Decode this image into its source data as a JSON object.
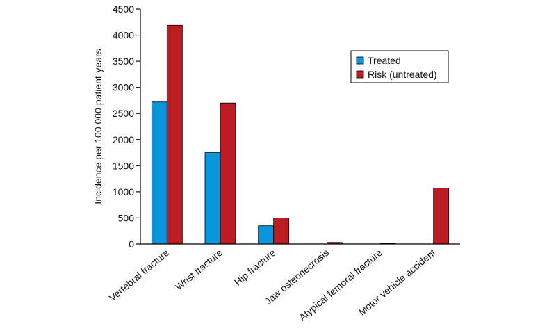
{
  "chart_data": {
    "type": "bar",
    "title": "",
    "xlabel": "",
    "ylabel": "Incidence per 100 000 patient-years",
    "ylim": [
      0,
      4500
    ],
    "yticks": [
      0,
      500,
      1000,
      1500,
      2000,
      2500,
      3000,
      3500,
      4000,
      4500
    ],
    "grid": false,
    "legend_position": "top-right",
    "categories": [
      "Vertebral fracture",
      "Wrist fracture",
      "Hip fracture",
      "Jaw osteonecrosis",
      "Atypical femoral fracture",
      "Motor vehicle accident"
    ],
    "series": [
      {
        "name": "Treated",
        "color": "#0a96dc",
        "values": [
          2720,
          1750,
          350,
          0,
          0,
          0
        ]
      },
      {
        "name": "Risk (untreated)",
        "color": "#bc1c24",
        "values": [
          4190,
          2700,
          500,
          30,
          10,
          1070
        ]
      }
    ]
  }
}
